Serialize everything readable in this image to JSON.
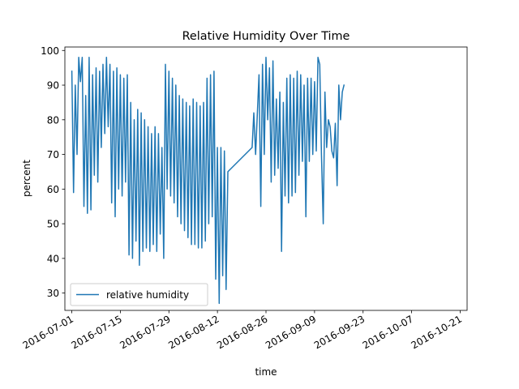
{
  "chart_data": {
    "type": "line",
    "title": "Relative Humidity Over Time",
    "xlabel": "time",
    "ylabel": "percent",
    "xlim": [
      "2016-06-29",
      "2016-10-23"
    ],
    "ylim": [
      25,
      101
    ],
    "x_ticks": [
      "2016-07-01",
      "2016-07-15",
      "2016-07-29",
      "2016-08-12",
      "2016-08-26",
      "2016-09-09",
      "2016-09-23",
      "2016-10-07",
      "2016-10-21"
    ],
    "y_ticks": [
      30,
      40,
      50,
      60,
      70,
      80,
      90,
      100
    ],
    "legend": {
      "position": "lower-left"
    },
    "series": [
      {
        "name": "relative humidity",
        "color": "#1f77b4",
        "points": [
          [
            "2016-07-01T00:00",
            94
          ],
          [
            "2016-07-01T12:00",
            59
          ],
          [
            "2016-07-02T00:00",
            90
          ],
          [
            "2016-07-02T12:00",
            70
          ],
          [
            "2016-07-03T00:00",
            98
          ],
          [
            "2016-07-03T12:00",
            91
          ],
          [
            "2016-07-04T00:00",
            98
          ],
          [
            "2016-07-04T12:00",
            55
          ],
          [
            "2016-07-05T00:00",
            87
          ],
          [
            "2016-07-05T12:00",
            53
          ],
          [
            "2016-07-06T00:00",
            98
          ],
          [
            "2016-07-06T12:00",
            54
          ],
          [
            "2016-07-07T00:00",
            93
          ],
          [
            "2016-07-07T12:00",
            64
          ],
          [
            "2016-07-08T00:00",
            95
          ],
          [
            "2016-07-08T12:00",
            62
          ],
          [
            "2016-07-09T00:00",
            94
          ],
          [
            "2016-07-09T12:00",
            72
          ],
          [
            "2016-07-10T00:00",
            96
          ],
          [
            "2016-07-10T12:00",
            76
          ],
          [
            "2016-07-11T00:00",
            98
          ],
          [
            "2016-07-11T12:00",
            78
          ],
          [
            "2016-07-12T00:00",
            96
          ],
          [
            "2016-07-12T12:00",
            56
          ],
          [
            "2016-07-13T00:00",
            94
          ],
          [
            "2016-07-13T12:00",
            52
          ],
          [
            "2016-07-14T00:00",
            95
          ],
          [
            "2016-07-14T12:00",
            60
          ],
          [
            "2016-07-15T00:00",
            93
          ],
          [
            "2016-07-15T12:00",
            58
          ],
          [
            "2016-07-16T00:00",
            92
          ],
          [
            "2016-07-16T12:00",
            62
          ],
          [
            "2016-07-17T00:00",
            93
          ],
          [
            "2016-07-17T12:00",
            41
          ],
          [
            "2016-07-18T00:00",
            85
          ],
          [
            "2016-07-18T12:00",
            40
          ],
          [
            "2016-07-19T00:00",
            80
          ],
          [
            "2016-07-19T12:00",
            45
          ],
          [
            "2016-07-20T00:00",
            83
          ],
          [
            "2016-07-20T12:00",
            38
          ],
          [
            "2016-07-21T00:00",
            82
          ],
          [
            "2016-07-21T12:00",
            42
          ],
          [
            "2016-07-22T00:00",
            80
          ],
          [
            "2016-07-22T12:00",
            43
          ],
          [
            "2016-07-23T00:00",
            78
          ],
          [
            "2016-07-23T12:00",
            42
          ],
          [
            "2016-07-24T00:00",
            76
          ],
          [
            "2016-07-24T12:00",
            44
          ],
          [
            "2016-07-25T00:00",
            78
          ],
          [
            "2016-07-25T12:00",
            42
          ],
          [
            "2016-07-26T00:00",
            76
          ],
          [
            "2016-07-26T12:00",
            47
          ],
          [
            "2016-07-27T00:00",
            72
          ],
          [
            "2016-07-27T12:00",
            40
          ],
          [
            "2016-07-28T00:00",
            96
          ],
          [
            "2016-07-28T12:00",
            60
          ],
          [
            "2016-07-29T00:00",
            94
          ],
          [
            "2016-07-29T12:00",
            58
          ],
          [
            "2016-07-30T00:00",
            92
          ],
          [
            "2016-07-30T12:00",
            56
          ],
          [
            "2016-07-31T00:00",
            90
          ],
          [
            "2016-07-31T12:00",
            52
          ],
          [
            "2016-08-01T00:00",
            87
          ],
          [
            "2016-08-01T12:00",
            50
          ],
          [
            "2016-08-02T00:00",
            86
          ],
          [
            "2016-08-02T12:00",
            48
          ],
          [
            "2016-08-03T00:00",
            85
          ],
          [
            "2016-08-03T12:00",
            46
          ],
          [
            "2016-08-04T00:00",
            84
          ],
          [
            "2016-08-04T12:00",
            44
          ],
          [
            "2016-08-05T00:00",
            86
          ],
          [
            "2016-08-05T12:00",
            44
          ],
          [
            "2016-08-06T00:00",
            85
          ],
          [
            "2016-08-06T12:00",
            43
          ],
          [
            "2016-08-07T00:00",
            84
          ],
          [
            "2016-08-07T12:00",
            43
          ],
          [
            "2016-08-08T00:00",
            85
          ],
          [
            "2016-08-08T12:00",
            45
          ],
          [
            "2016-08-09T00:00",
            92
          ],
          [
            "2016-08-09T12:00",
            50
          ],
          [
            "2016-08-10T00:00",
            93
          ],
          [
            "2016-08-10T12:00",
            52
          ],
          [
            "2016-08-11T00:00",
            94
          ],
          [
            "2016-08-11T12:00",
            34
          ],
          [
            "2016-08-12T00:00",
            72
          ],
          [
            "2016-08-12T12:00",
            27
          ],
          [
            "2016-08-13T00:00",
            72
          ],
          [
            "2016-08-13T12:00",
            35
          ],
          [
            "2016-08-14T00:00",
            71
          ],
          [
            "2016-08-14T12:00",
            31
          ],
          [
            "2016-08-15T00:00",
            65
          ],
          [
            "2016-08-22T00:00",
            72
          ],
          [
            "2016-08-22T12:00",
            82
          ],
          [
            "2016-08-23T00:00",
            70
          ],
          [
            "2016-08-24T00:00",
            93
          ],
          [
            "2016-08-24T12:00",
            55
          ],
          [
            "2016-08-25T00:00",
            96
          ],
          [
            "2016-08-25T12:00",
            70
          ],
          [
            "2016-08-26T00:00",
            98
          ],
          [
            "2016-08-26T12:00",
            80
          ],
          [
            "2016-08-27T00:00",
            95
          ],
          [
            "2016-08-27T12:00",
            62
          ],
          [
            "2016-08-28T00:00",
            97
          ],
          [
            "2016-08-28T12:00",
            64
          ],
          [
            "2016-08-29T00:00",
            86
          ],
          [
            "2016-08-29T12:00",
            66
          ],
          [
            "2016-08-30T00:00",
            88
          ],
          [
            "2016-08-30T12:00",
            42
          ],
          [
            "2016-08-31T00:00",
            85
          ],
          [
            "2016-08-31T12:00",
            58
          ],
          [
            "2016-09-01T00:00",
            92
          ],
          [
            "2016-09-01T12:00",
            56
          ],
          [
            "2016-09-02T00:00",
            93
          ],
          [
            "2016-09-02T12:00",
            58
          ],
          [
            "2016-09-03T00:00",
            92
          ],
          [
            "2016-09-03T12:00",
            59
          ],
          [
            "2016-09-04T00:00",
            94
          ],
          [
            "2016-09-04T12:00",
            64
          ],
          [
            "2016-09-05T00:00",
            93
          ],
          [
            "2016-09-05T12:00",
            68
          ],
          [
            "2016-09-06T00:00",
            90
          ],
          [
            "2016-09-06T12:00",
            52
          ],
          [
            "2016-09-07T00:00",
            92
          ],
          [
            "2016-09-07T12:00",
            68
          ],
          [
            "2016-09-08T00:00",
            92
          ],
          [
            "2016-09-08T12:00",
            70
          ],
          [
            "2016-09-09T00:00",
            91
          ],
          [
            "2016-09-09T12:00",
            71
          ],
          [
            "2016-09-10T00:00",
            98
          ],
          [
            "2016-09-10T12:00",
            96
          ],
          [
            "2016-09-11T00:00",
            70
          ],
          [
            "2016-09-11T12:00",
            50
          ],
          [
            "2016-09-12T00:00",
            88
          ],
          [
            "2016-09-12T12:00",
            72
          ],
          [
            "2016-09-13T00:00",
            80
          ],
          [
            "2016-09-13T12:00",
            78
          ],
          [
            "2016-09-14T00:00",
            71
          ],
          [
            "2016-09-14T12:00",
            69
          ],
          [
            "2016-09-15T00:00",
            79
          ],
          [
            "2016-09-15T12:00",
            61
          ],
          [
            "2016-09-16T00:00",
            90
          ],
          [
            "2016-09-16T12:00",
            80
          ],
          [
            "2016-09-17T00:00",
            88
          ],
          [
            "2016-09-17T12:00",
            90
          ]
        ]
      }
    ]
  }
}
